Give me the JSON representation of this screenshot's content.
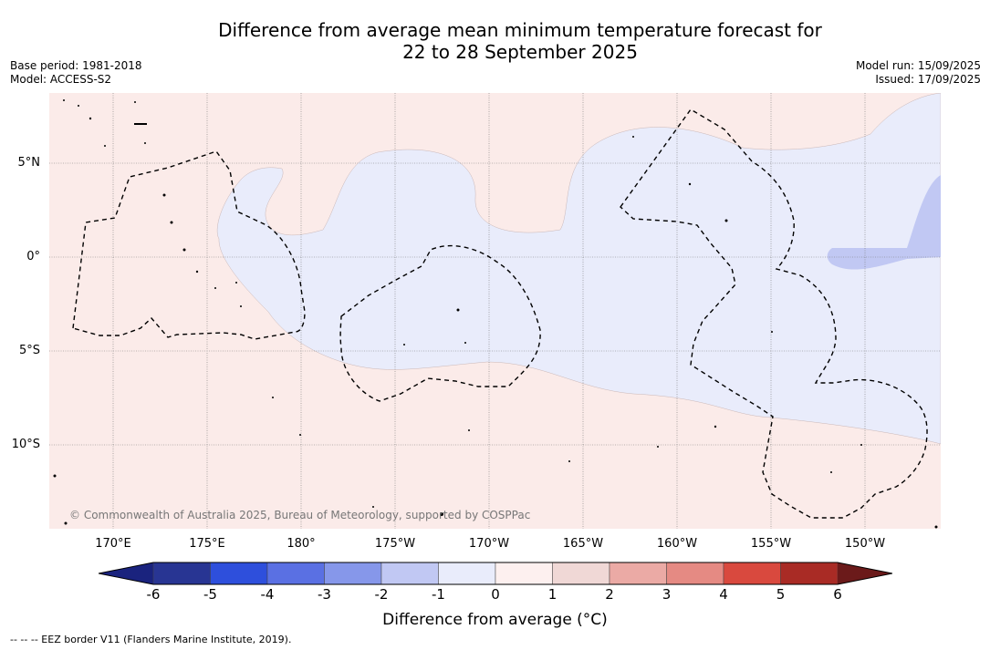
{
  "title": {
    "line1": "Difference from average mean minimum temperature forecast for",
    "line2": "22 to 28 September 2025"
  },
  "meta_left": {
    "base_period": "Base period: 1981-2018",
    "model": "Model: ACCESS-S2"
  },
  "meta_right": {
    "model_run": "Model run: 15/09/2025",
    "issued": "Issued: 17/09/2025"
  },
  "map": {
    "lat_labels": [
      "5°N",
      "0°",
      "5°S",
      "10°S"
    ],
    "lon_labels": [
      "170°E",
      "175°E",
      "180°",
      "175°W",
      "170°W",
      "165°W",
      "160°W",
      "155°W",
      "150°W"
    ],
    "copyright": "© Commonwealth of Australia 2025, Bureau of Meteorology, supported by COSPPac",
    "colors": {
      "warm_0_1": "#fbebe9",
      "cool_m1_0": "#e9ecfb",
      "cool_m2_m1": "#c1c8f3"
    }
  },
  "colorbar": {
    "title": "Difference from average (°C)",
    "ticks": [
      "-6",
      "-5",
      "-4",
      "-3",
      "-2",
      "-1",
      "0",
      "1",
      "2",
      "3",
      "4",
      "5",
      "6"
    ],
    "low_extend_color": "#1a237e",
    "high_extend_color": "#6b1a1a",
    "bins": [
      "#283593",
      "#2e4fdc",
      "#5a70e3",
      "#8697ea",
      "#c1c8f3",
      "#e9ecfb",
      "#fdf0ef",
      "#f0d8d6",
      "#ebaaa5",
      "#e58a83",
      "#d9493e",
      "#a92b25"
    ]
  },
  "legend": {
    "eez": "--  --  -- EEZ border V11 (Flanders Marine Institute, 2019)."
  }
}
